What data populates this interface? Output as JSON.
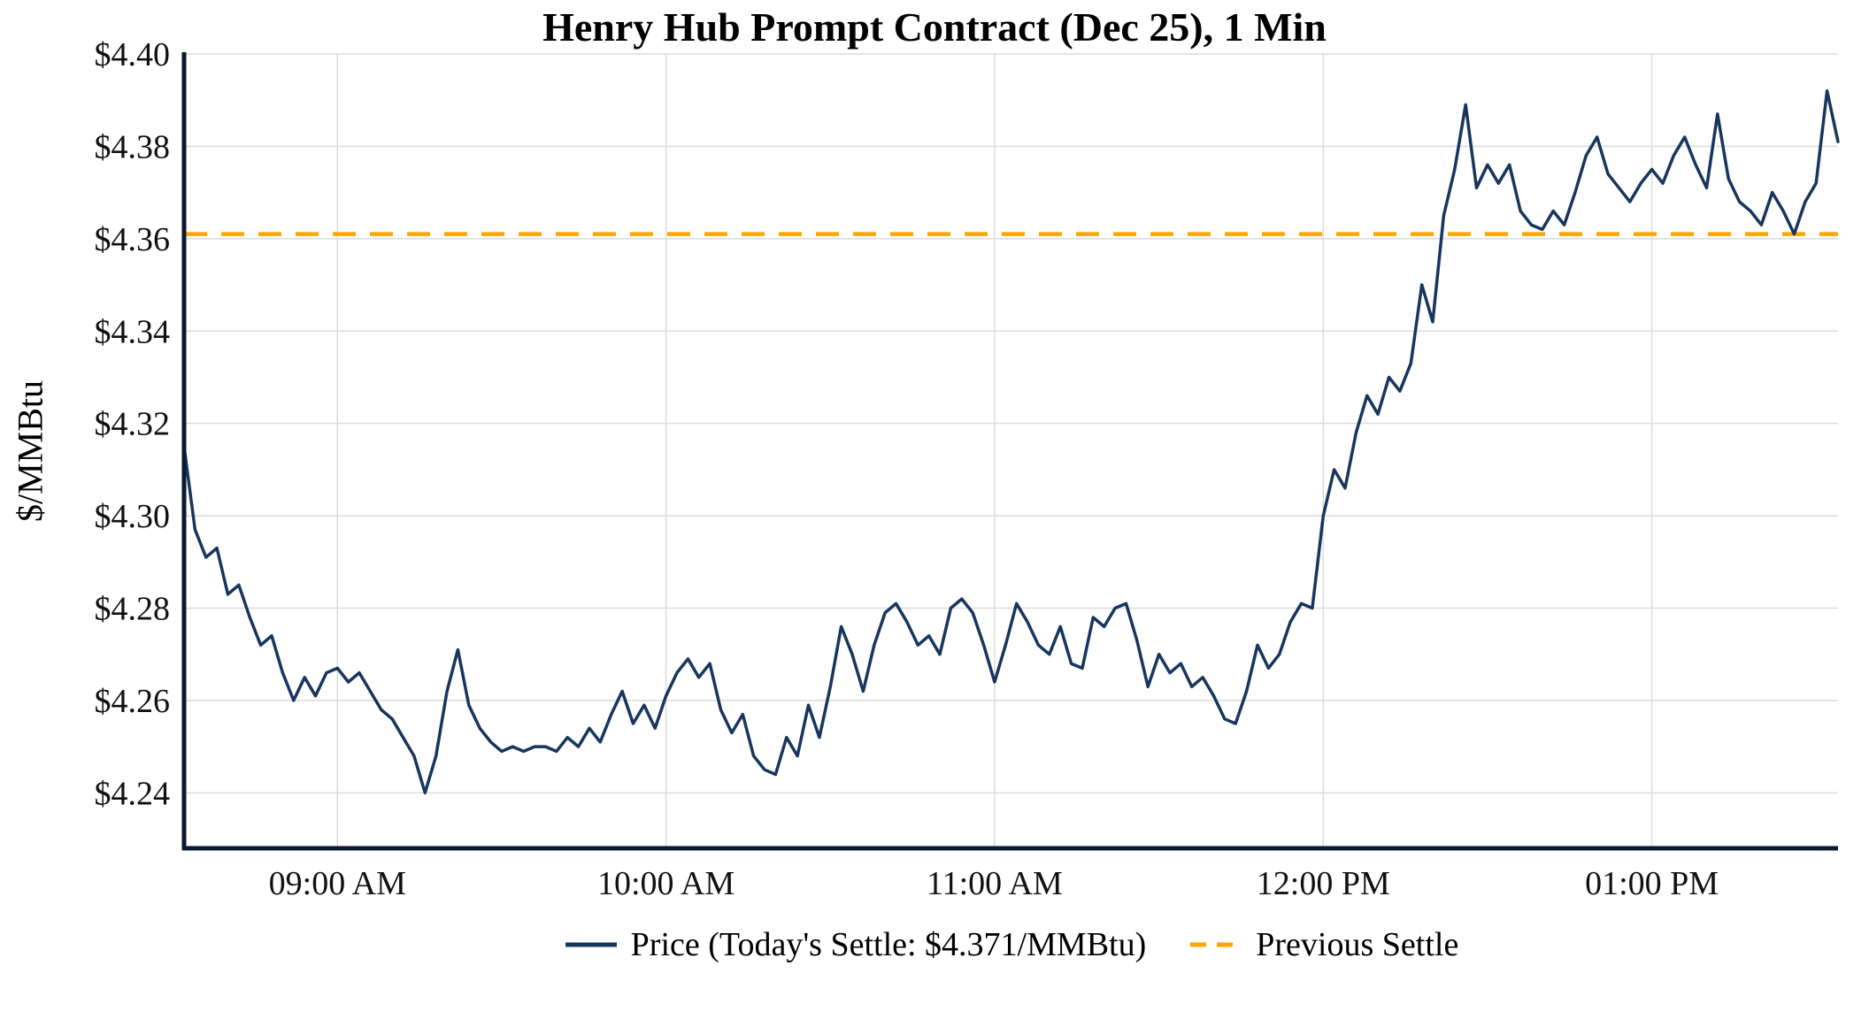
{
  "title": "Henry Hub Prompt Contract (Dec 25), 1 Min",
  "y_axis_label": "$/MMBtu",
  "legend": {
    "price_label": "Price (Today's Settle: $4.371/MMBtu)",
    "previous_settle_label": "Previous Settle"
  },
  "colors": {
    "price_line": "#17365D",
    "previous_settle": "#FFA500",
    "grid": "#DCDCDC",
    "axis": "#0A1931",
    "text": "#111111"
  },
  "chart_data": {
    "type": "line",
    "title": "Henry Hub Prompt Contract (Dec 25), 1 Min",
    "xlabel": "",
    "ylabel": "$/MMBtu",
    "ylim": [
      4.228,
      4.4
    ],
    "grid": true,
    "legend_position": "bottom",
    "y_ticks": [
      4.24,
      4.26,
      4.28,
      4.3,
      4.32,
      4.34,
      4.36,
      4.38,
      4.4
    ],
    "y_tick_labels": [
      "$4.24",
      "$4.26",
      "$4.28",
      "$4.30",
      "$4.32",
      "$4.34",
      "$4.36",
      "$4.38",
      "$4.40"
    ],
    "x_start_minutes": 512,
    "x_step_minutes": 2,
    "x_ticks_minutes": [
      540,
      600,
      660,
      720,
      780
    ],
    "x_tick_labels": [
      "09:00 AM",
      "10:00 AM",
      "11:00 AM",
      "12:00 PM",
      "01:00 PM"
    ],
    "previous_settle": 4.361,
    "todays_settle": 4.371,
    "series": [
      {
        "name": "Price",
        "values": [
          4.315,
          4.297,
          4.291,
          4.293,
          4.283,
          4.285,
          4.278,
          4.272,
          4.274,
          4.266,
          4.26,
          4.265,
          4.261,
          4.266,
          4.267,
          4.264,
          4.266,
          4.262,
          4.258,
          4.256,
          4.252,
          4.248,
          4.24,
          4.248,
          4.262,
          4.271,
          4.259,
          4.254,
          4.251,
          4.249,
          4.25,
          4.249,
          4.25,
          4.25,
          4.249,
          4.252,
          4.25,
          4.254,
          4.251,
          4.257,
          4.262,
          4.255,
          4.259,
          4.254,
          4.261,
          4.266,
          4.269,
          4.265,
          4.268,
          4.258,
          4.253,
          4.257,
          4.248,
          4.245,
          4.244,
          4.252,
          4.248,
          4.259,
          4.252,
          4.263,
          4.276,
          4.27,
          4.262,
          4.272,
          4.279,
          4.281,
          4.277,
          4.272,
          4.274,
          4.27,
          4.28,
          4.282,
          4.279,
          4.272,
          4.264,
          4.272,
          4.281,
          4.277,
          4.272,
          4.27,
          4.276,
          4.268,
          4.267,
          4.278,
          4.276,
          4.28,
          4.281,
          4.273,
          4.263,
          4.27,
          4.266,
          4.268,
          4.263,
          4.265,
          4.261,
          4.256,
          4.255,
          4.262,
          4.272,
          4.267,
          4.27,
          4.277,
          4.281,
          4.28,
          4.3,
          4.31,
          4.306,
          4.318,
          4.326,
          4.322,
          4.33,
          4.327,
          4.333,
          4.35,
          4.342,
          4.365,
          4.375,
          4.389,
          4.371,
          4.376,
          4.372,
          4.376,
          4.366,
          4.363,
          4.362,
          4.366,
          4.363,
          4.37,
          4.378,
          4.382,
          4.374,
          4.371,
          4.368,
          4.372,
          4.375,
          4.372,
          4.378,
          4.382,
          4.376,
          4.371,
          4.387,
          4.373,
          4.368,
          4.366,
          4.363,
          4.37,
          4.366,
          4.361,
          4.368,
          4.372,
          4.392,
          4.381
        ]
      }
    ]
  }
}
